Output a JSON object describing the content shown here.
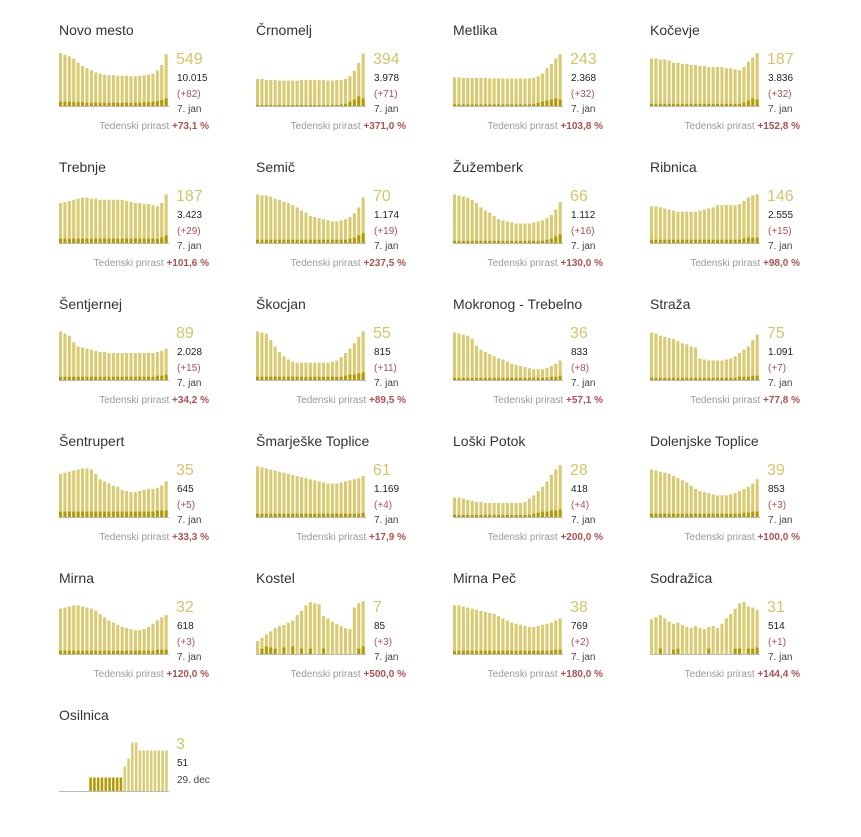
{
  "colors": {
    "bar": "#d9cb72",
    "new": "#b39a00",
    "accent_red": "#b05050",
    "muted": "#999999"
  },
  "weekly_label": "Tedenski prirast",
  "chart_data": [
    {
      "type": "bar",
      "name": "Novo mesto",
      "active": "549",
      "total": "10.015",
      "delta": "(+82)",
      "date": "7. jan",
      "weekly": "+73,1 %",
      "values": [
        98,
        95,
        92,
        88,
        80,
        74,
        70,
        66,
        62,
        60,
        58,
        57,
        57,
        56,
        56,
        56,
        55,
        55,
        56,
        57,
        58,
        60,
        66,
        76,
        96
      ],
      "new_values": [
        8,
        8,
        8,
        7,
        7,
        7,
        6,
        6,
        6,
        6,
        6,
        6,
        6,
        6,
        6,
        6,
        6,
        6,
        6,
        7,
        7,
        8,
        9,
        11,
        14
      ]
    },
    {
      "type": "bar",
      "name": "Črnomelj",
      "active": "394",
      "total": "3.978",
      "delta": "(+71)",
      "date": "7. jan",
      "weekly": "+371,0 %",
      "values": [
        50,
        50,
        48,
        48,
        48,
        47,
        47,
        47,
        47,
        47,
        48,
        48,
        48,
        48,
        48,
        48,
        47,
        47,
        48,
        48,
        50,
        55,
        65,
        80,
        97
      ],
      "new_values": [
        2,
        2,
        2,
        2,
        2,
        2,
        2,
        2,
        2,
        2,
        2,
        2,
        2,
        2,
        2,
        2,
        2,
        2,
        2,
        3,
        4,
        8,
        12,
        18,
        14
      ]
    },
    {
      "type": "bar",
      "name": "Metlika",
      "active": "243",
      "total": "2.368",
      "delta": "(+32)",
      "date": "7. jan",
      "weekly": "+103,8 %",
      "values": [
        53,
        53,
        52,
        52,
        52,
        52,
        52,
        52,
        51,
        51,
        51,
        51,
        51,
        51,
        51,
        51,
        51,
        51,
        52,
        55,
        60,
        70,
        78,
        88,
        96
      ],
      "new_values": [
        3,
        3,
        3,
        3,
        3,
        3,
        3,
        3,
        3,
        3,
        3,
        3,
        3,
        3,
        3,
        3,
        3,
        3,
        4,
        6,
        8,
        10,
        12,
        14,
        12
      ]
    },
    {
      "type": "bar",
      "name": "Kočevje",
      "active": "187",
      "total": "3.836",
      "delta": "(+32)",
      "date": "7. jan",
      "weekly": "+152,8 %",
      "values": [
        88,
        88,
        86,
        86,
        84,
        80,
        80,
        78,
        78,
        76,
        76,
        74,
        74,
        72,
        72,
        72,
        72,
        70,
        70,
        68,
        66,
        72,
        82,
        90,
        98
      ],
      "new_values": [
        4,
        4,
        4,
        4,
        4,
        4,
        4,
        4,
        4,
        4,
        4,
        4,
        4,
        4,
        4,
        4,
        4,
        4,
        4,
        4,
        4,
        6,
        10,
        14,
        12
      ]
    },
    {
      "type": "bar",
      "name": "Trebnje",
      "active": "187",
      "total": "3.423",
      "delta": "(+29)",
      "date": "7. jan",
      "weekly": "+101,6 %",
      "values": [
        74,
        76,
        78,
        80,
        82,
        84,
        84,
        82,
        82,
        80,
        80,
        80,
        80,
        80,
        80,
        78,
        76,
        74,
        74,
        72,
        72,
        70,
        68,
        74,
        90
      ],
      "new_values": [
        8,
        8,
        8,
        8,
        8,
        8,
        8,
        8,
        8,
        8,
        8,
        8,
        8,
        8,
        8,
        8,
        8,
        8,
        8,
        8,
        8,
        8,
        8,
        10,
        14
      ]
    },
    {
      "type": "bar",
      "name": "Semič",
      "active": "70",
      "total": "1.174",
      "delta": "(+19)",
      "date": "7. jan",
      "weekly": "+237,5 %",
      "values": [
        90,
        88,
        88,
        86,
        82,
        80,
        76,
        74,
        70,
        66,
        60,
        56,
        50,
        48,
        46,
        44,
        42,
        40,
        40,
        42,
        44,
        48,
        55,
        66,
        84
      ],
      "new_values": [
        6,
        6,
        6,
        6,
        6,
        6,
        6,
        6,
        6,
        6,
        6,
        6,
        6,
        6,
        6,
        6,
        6,
        6,
        6,
        6,
        6,
        8,
        10,
        14,
        18
      ]
    },
    {
      "type": "bar",
      "name": "Žužemberk",
      "active": "66",
      "total": "1.112",
      "delta": "(+16)",
      "date": "7. jan",
      "weekly": "+130,0 %",
      "values": [
        90,
        88,
        86,
        84,
        80,
        74,
        66,
        60,
        56,
        50,
        44,
        42,
        40,
        38,
        36,
        36,
        36,
        36,
        38,
        40,
        42,
        46,
        52,
        62,
        76
      ],
      "new_values": [
        4,
        4,
        4,
        4,
        4,
        4,
        4,
        4,
        4,
        4,
        4,
        4,
        4,
        4,
        4,
        4,
        4,
        4,
        4,
        4,
        4,
        6,
        8,
        12,
        16
      ]
    },
    {
      "type": "bar",
      "name": "Ribnica",
      "active": "146",
      "total": "2.555",
      "delta": "(+15)",
      "date": "7. jan",
      "weekly": "+98,0 %",
      "values": [
        68,
        68,
        66,
        64,
        62,
        60,
        58,
        58,
        58,
        58,
        58,
        60,
        62,
        64,
        66,
        70,
        70,
        70,
        70,
        70,
        72,
        78,
        84,
        88,
        90
      ],
      "new_values": [
        6,
        6,
        6,
        6,
        6,
        6,
        6,
        6,
        6,
        6,
        6,
        6,
        6,
        6,
        6,
        6,
        6,
        6,
        6,
        6,
        6,
        8,
        10,
        10,
        10
      ]
    },
    {
      "type": "bar",
      "name": "Šentjernej",
      "active": "89",
      "total": "2.028",
      "delta": "(+15)",
      "date": "7. jan",
      "weekly": "+34,2 %",
      "values": [
        90,
        86,
        82,
        70,
        62,
        60,
        58,
        56,
        54,
        52,
        52,
        50,
        50,
        50,
        50,
        50,
        50,
        50,
        50,
        50,
        50,
        50,
        52,
        54,
        58
      ],
      "new_values": [
        6,
        6,
        6,
        6,
        6,
        6,
        6,
        6,
        6,
        6,
        6,
        6,
        6,
        6,
        6,
        6,
        6,
        6,
        6,
        6,
        6,
        6,
        8,
        8,
        10
      ]
    },
    {
      "type": "bar",
      "name": "Škocjan",
      "active": "55",
      "total": "815",
      "delta": "(+11)",
      "date": "7. jan",
      "weekly": "+89,5 %",
      "values": [
        90,
        88,
        86,
        74,
        62,
        52,
        44,
        38,
        34,
        32,
        32,
        32,
        32,
        32,
        32,
        32,
        32,
        34,
        36,
        42,
        50,
        58,
        68,
        80,
        90
      ],
      "new_values": [
        6,
        6,
        6,
        6,
        6,
        6,
        6,
        6,
        6,
        6,
        6,
        6,
        6,
        6,
        6,
        6,
        6,
        6,
        6,
        6,
        8,
        10,
        10,
        12,
        14
      ]
    },
    {
      "type": "bar",
      "name": "Mokronog - Trebelno",
      "active": "36",
      "total": "833",
      "delta": "(+8)",
      "date": "7. jan",
      "weekly": "+57,1 %",
      "values": [
        88,
        86,
        84,
        82,
        76,
        64,
        56,
        52,
        48,
        44,
        40,
        38,
        34,
        30,
        28,
        26,
        24,
        22,
        20,
        20,
        20,
        22,
        26,
        30,
        36
      ],
      "new_values": [
        4,
        4,
        4,
        4,
        4,
        4,
        4,
        4,
        4,
        4,
        4,
        4,
        4,
        4,
        4,
        4,
        4,
        4,
        4,
        4,
        4,
        4,
        6,
        6,
        8
      ]
    },
    {
      "type": "bar",
      "name": "Straža",
      "active": "75",
      "total": "1.091",
      "delta": "(+7)",
      "date": "7. jan",
      "weekly": "+77,8 %",
      "values": [
        88,
        86,
        82,
        80,
        78,
        76,
        72,
        68,
        66,
        62,
        60,
        40,
        38,
        36,
        36,
        36,
        36,
        38,
        40,
        44,
        50,
        56,
        62,
        74,
        84
      ],
      "new_values": [
        4,
        4,
        4,
        4,
        4,
        4,
        4,
        4,
        4,
        4,
        4,
        4,
        4,
        4,
        4,
        4,
        4,
        4,
        4,
        4,
        6,
        6,
        6,
        8,
        8
      ]
    },
    {
      "type": "bar",
      "name": "Šentrupert",
      "active": "35",
      "total": "645",
      "delta": "(+5)",
      "date": "7. jan",
      "weekly": "+33,3 %",
      "values": [
        80,
        82,
        84,
        86,
        88,
        90,
        90,
        88,
        80,
        70,
        66,
        62,
        58,
        56,
        50,
        48,
        46,
        46,
        48,
        50,
        52,
        52,
        54,
        58,
        66
      ],
      "new_values": [
        10,
        10,
        10,
        10,
        10,
        10,
        10,
        10,
        10,
        10,
        10,
        10,
        10,
        10,
        10,
        10,
        10,
        10,
        10,
        10,
        10,
        10,
        12,
        12,
        12
      ]
    },
    {
      "type": "bar",
      "name": "Šmarješke Toplice",
      "active": "61",
      "total": "1.169",
      "delta": "(+4)",
      "date": "7. jan",
      "weekly": "+17,9 %",
      "values": [
        94,
        92,
        90,
        88,
        86,
        84,
        82,
        80,
        78,
        76,
        74,
        72,
        70,
        68,
        66,
        64,
        62,
        62,
        62,
        64,
        66,
        68,
        70,
        72,
        76
      ],
      "new_values": [
        6,
        6,
        6,
        6,
        6,
        6,
        6,
        6,
        6,
        6,
        6,
        6,
        6,
        6,
        6,
        6,
        6,
        6,
        6,
        6,
        6,
        6,
        6,
        6,
        8
      ]
    },
    {
      "type": "bar",
      "name": "Loški Potok",
      "active": "28",
      "total": "418",
      "delta": "(+4)",
      "date": "7. jan",
      "weekly": "+200,0 %",
      "values": [
        36,
        36,
        34,
        32,
        30,
        28,
        28,
        26,
        26,
        26,
        26,
        26,
        26,
        26,
        26,
        26,
        28,
        34,
        40,
        48,
        56,
        66,
        78,
        88,
        96
      ],
      "new_values": [
        4,
        4,
        4,
        4,
        4,
        4,
        4,
        4,
        4,
        4,
        4,
        4,
        4,
        4,
        4,
        4,
        4,
        4,
        6,
        8,
        10,
        10,
        12,
        12,
        14
      ]
    },
    {
      "type": "bar",
      "name": "Dolenjske Toplice",
      "active": "39",
      "total": "853",
      "delta": "(+3)",
      "date": "7. jan",
      "weekly": "+100,0 %",
      "values": [
        88,
        86,
        84,
        82,
        80,
        76,
        72,
        68,
        64,
        58,
        52,
        48,
        46,
        44,
        42,
        40,
        40,
        40,
        42,
        44,
        48,
        52,
        56,
        62,
        70
      ],
      "new_values": [
        6,
        6,
        6,
        6,
        6,
        6,
        6,
        6,
        6,
        6,
        6,
        6,
        6,
        6,
        6,
        6,
        6,
        6,
        6,
        6,
        6,
        8,
        8,
        10,
        10
      ]
    },
    {
      "type": "bar",
      "name": "Mirna",
      "active": "32",
      "total": "618",
      "delta": "(+3)",
      "date": "7. jan",
      "weekly": "+120,0 %",
      "values": [
        84,
        86,
        88,
        90,
        90,
        88,
        86,
        84,
        80,
        74,
        68,
        62,
        58,
        54,
        50,
        48,
        46,
        44,
        44,
        46,
        50,
        56,
        62,
        68,
        72
      ],
      "new_values": [
        6,
        6,
        6,
        6,
        6,
        6,
        6,
        6,
        6,
        6,
        6,
        6,
        6,
        6,
        6,
        6,
        6,
        6,
        6,
        6,
        6,
        6,
        8,
        8,
        8
      ]
    },
    {
      "type": "bar",
      "name": "Kostel",
      "active": "7",
      "total": "85",
      "delta": "(+3)",
      "date": "7. jan",
      "weekly": "+500,0 %",
      "values": [
        24,
        30,
        36,
        42,
        48,
        52,
        54,
        58,
        62,
        72,
        80,
        90,
        96,
        94,
        92,
        70,
        66,
        60,
        56,
        52,
        48,
        46,
        86,
        94,
        98
      ],
      "new_values": [
        0,
        10,
        14,
        12,
        10,
        0,
        12,
        0,
        14,
        0,
        10,
        0,
        10,
        0,
        0,
        10,
        0,
        0,
        0,
        0,
        0,
        0,
        0,
        10,
        14
      ]
    },
    {
      "type": "bar",
      "name": "Mirna Peč",
      "active": "38",
      "total": "769",
      "delta": "(+2)",
      "date": "7. jan",
      "weekly": "+180,0 %",
      "values": [
        90,
        90,
        88,
        86,
        84,
        82,
        80,
        78,
        76,
        74,
        70,
        66,
        62,
        58,
        56,
        54,
        52,
        50,
        50,
        52,
        54,
        56,
        58,
        62,
        66
      ],
      "new_values": [
        6,
        6,
        6,
        6,
        6,
        6,
        6,
        6,
        6,
        6,
        6,
        6,
        6,
        6,
        6,
        6,
        6,
        6,
        6,
        6,
        6,
        6,
        6,
        8,
        8
      ]
    },
    {
      "type": "bar",
      "name": "Sodražica",
      "active": "31",
      "total": "514",
      "delta": "(+1)",
      "date": "7. jan",
      "weekly": "+144,4 %",
      "values": [
        64,
        68,
        72,
        66,
        60,
        56,
        58,
        54,
        50,
        48,
        52,
        48,
        46,
        50,
        52,
        48,
        56,
        66,
        74,
        84,
        94,
        96,
        88,
        86,
        82
      ],
      "new_values": [
        0,
        0,
        10,
        0,
        0,
        8,
        10,
        0,
        0,
        0,
        0,
        0,
        0,
        10,
        0,
        0,
        0,
        0,
        0,
        10,
        10,
        0,
        10,
        10,
        12
      ]
    },
    {
      "type": "bar",
      "name": "Osilnica",
      "active": "3",
      "total": "51",
      "date": "29. dec",
      "values": [
        0,
        0,
        0,
        0,
        0,
        0,
        0,
        0,
        25,
        25,
        25,
        25,
        25,
        25,
        25,
        25,
        25,
        45,
        60,
        90,
        90,
        75,
        75,
        75,
        75,
        75,
        75,
        75,
        75
      ],
      "new_values": [
        0,
        0,
        0,
        0,
        0,
        0,
        0,
        0,
        25,
        25,
        25,
        25,
        25,
        25,
        25,
        25,
        25,
        0,
        0,
        0,
        0,
        0,
        0,
        0,
        0,
        0,
        0,
        0,
        0
      ]
    }
  ]
}
